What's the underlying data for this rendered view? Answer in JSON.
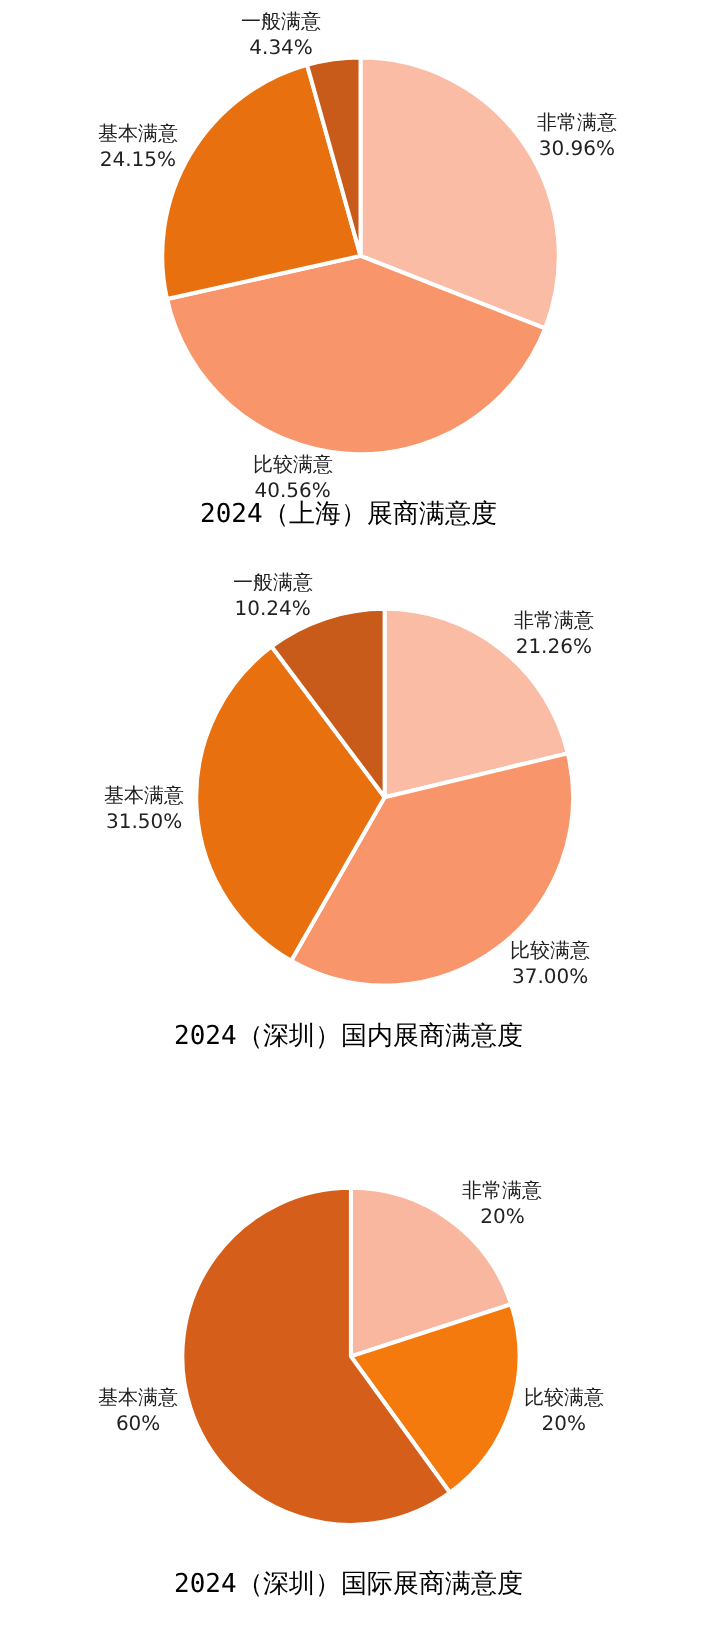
{
  "chart_data": [
    {
      "type": "pie",
      "title": "2024（上海）展商满意度",
      "categories": [
        "非常满意",
        "比较满意",
        "基本满意",
        "一般满意"
      ],
      "values": [
        30.96,
        40.56,
        24.15,
        4.34
      ],
      "value_labels": [
        "30.96%",
        "40.56%",
        "24.15%",
        "4.34%"
      ],
      "colors": [
        "#fbbca6",
        "#f9956a",
        "#e8700f",
        "#c85a1a"
      ]
    },
    {
      "type": "pie",
      "title": "2024（深圳）国内展商满意度",
      "categories": [
        "非常满意",
        "比较满意",
        "基本满意",
        "一般满意"
      ],
      "values": [
        21.26,
        37.0,
        31.5,
        10.24
      ],
      "value_labels": [
        "21.26%",
        "37.00%",
        "31.50%",
        "10.24%"
      ],
      "colors": [
        "#fbbca6",
        "#f9956a",
        "#e8700f",
        "#c85a1a"
      ]
    },
    {
      "type": "pie",
      "title": "2024（深圳）国际展商满意度",
      "categories": [
        "非常满意",
        "比较满意",
        "基本满意"
      ],
      "values": [
        20,
        20,
        60
      ],
      "value_labels": [
        "20%",
        "20%",
        "60%"
      ],
      "colors": [
        "#f9b7a0",
        "#f57a0e",
        "#d45e1a"
      ]
    }
  ]
}
